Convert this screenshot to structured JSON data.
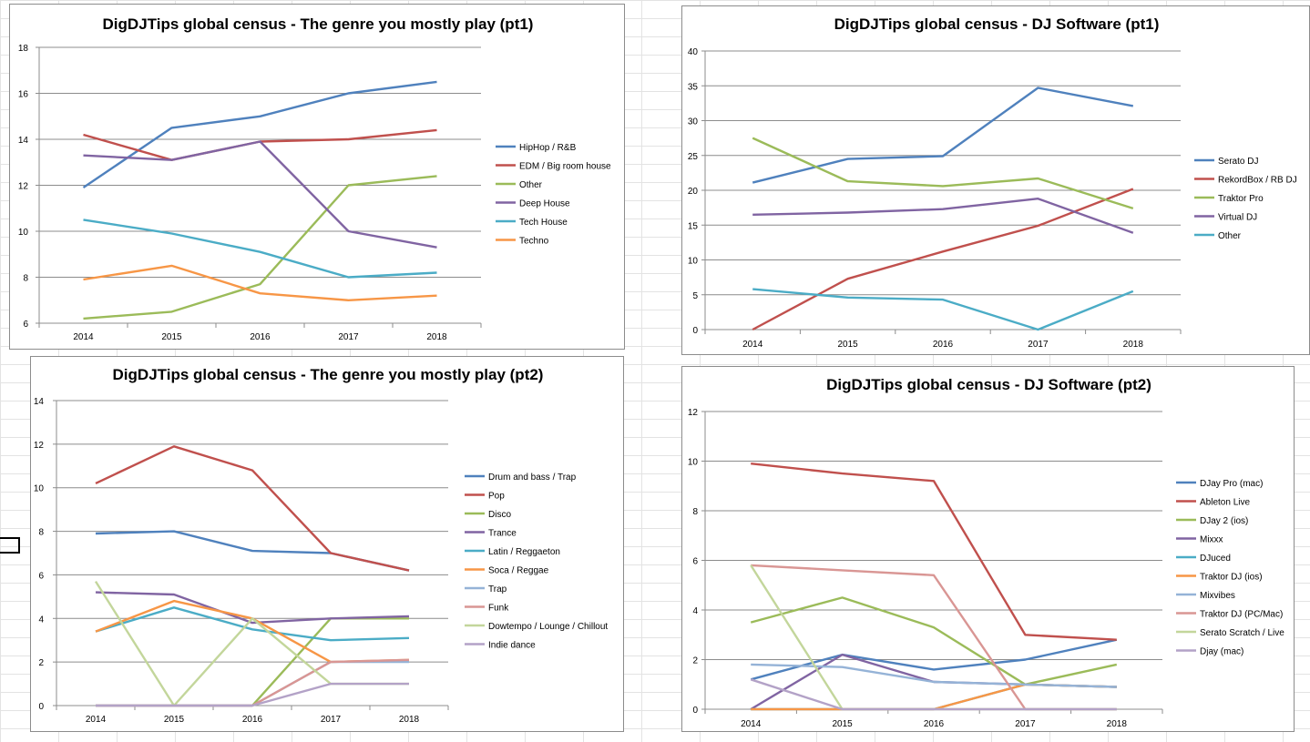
{
  "chart_data": [
    {
      "type": "line",
      "title": "DigDJTips global census - The genre you mostly play (pt1)",
      "xlabel": "",
      "ylabel": "",
      "categories": [
        "2014",
        "2015",
        "2016",
        "2017",
        "2018"
      ],
      "ylim": [
        6,
        18
      ],
      "yticks": [
        6,
        8,
        10,
        12,
        14,
        16,
        18
      ],
      "grid": true,
      "legend": "right",
      "series": [
        {
          "name": "HipHop / R&B",
          "color": "#4f81bd",
          "values": [
            11.9,
            14.5,
            15.0,
            16.0,
            16.5
          ]
        },
        {
          "name": "EDM / Big room house",
          "color": "#c0504d",
          "values": [
            14.2,
            13.1,
            13.9,
            14.0,
            14.4
          ]
        },
        {
          "name": "Other",
          "color": "#9bbb59",
          "values": [
            6.2,
            6.5,
            7.7,
            12.0,
            12.4
          ]
        },
        {
          "name": "Deep House",
          "color": "#8064a2",
          "values": [
            13.3,
            13.1,
            13.9,
            10.0,
            9.3
          ]
        },
        {
          "name": "Tech House",
          "color": "#4bacc6",
          "values": [
            10.5,
            9.9,
            9.1,
            8.0,
            8.2
          ]
        },
        {
          "name": "Techno",
          "color": "#f79646",
          "values": [
            7.9,
            8.5,
            7.3,
            7.0,
            7.2
          ]
        }
      ]
    },
    {
      "type": "line",
      "title": "DigDJTips global census - DJ Software (pt1)",
      "xlabel": "",
      "ylabel": "",
      "categories": [
        "2014",
        "2015",
        "2016",
        "2017",
        "2018"
      ],
      "ylim": [
        0,
        40
      ],
      "yticks": [
        0,
        5,
        10,
        15,
        20,
        25,
        30,
        35,
        40
      ],
      "grid": true,
      "legend": "right",
      "series": [
        {
          "name": "Serato DJ",
          "color": "#4f81bd",
          "values": [
            21.1,
            24.5,
            24.9,
            34.7,
            32.1
          ]
        },
        {
          "name": "RekordBox / RB DJ",
          "color": "#c0504d",
          "values": [
            0,
            7.3,
            11.2,
            14.9,
            20.2
          ]
        },
        {
          "name": "Traktor Pro",
          "color": "#9bbb59",
          "values": [
            27.5,
            21.3,
            20.6,
            21.7,
            17.4
          ]
        },
        {
          "name": "Virtual DJ",
          "color": "#8064a2",
          "values": [
            16.5,
            16.8,
            17.3,
            18.8,
            13.9
          ]
        },
        {
          "name": "Other",
          "color": "#4bacc6",
          "values": [
            5.8,
            4.6,
            4.3,
            0,
            5.5
          ]
        }
      ]
    },
    {
      "type": "line",
      "title": "DigDJTips global census - The genre you mostly play (pt2)",
      "xlabel": "",
      "ylabel": "",
      "categories": [
        "2014",
        "2015",
        "2016",
        "2017",
        "2018"
      ],
      "ylim": [
        0,
        14
      ],
      "yticks": [
        0,
        2,
        4,
        6,
        8,
        10,
        12,
        14
      ],
      "grid": true,
      "legend": "right",
      "series": [
        {
          "name": "Drum and bass / Trap",
          "color": "#4f81bd",
          "values": [
            7.9,
            8.0,
            7.1,
            7.0,
            6.2
          ]
        },
        {
          "name": "Pop",
          "color": "#c0504d",
          "values": [
            10.2,
            11.9,
            10.8,
            7.0,
            6.2
          ]
        },
        {
          "name": "Disco",
          "color": "#9bbb59",
          "values": [
            0,
            0,
            0,
            4.0,
            4.0
          ]
        },
        {
          "name": "Trance",
          "color": "#8064a2",
          "values": [
            5.2,
            5.1,
            3.8,
            4.0,
            4.1
          ]
        },
        {
          "name": "Latin / Reggaeton",
          "color": "#4bacc6",
          "values": [
            3.4,
            4.5,
            3.5,
            3.0,
            3.1
          ]
        },
        {
          "name": "Soca / Reggae",
          "color": "#f79646",
          "values": [
            3.4,
            4.8,
            4.0,
            2.0,
            2.1
          ]
        },
        {
          "name": "Trap",
          "color": "#95b3d7",
          "values": [
            0,
            0,
            0,
            2.0,
            2.0
          ]
        },
        {
          "name": "Funk",
          "color": "#d99694",
          "values": [
            0,
            0,
            0,
            2.0,
            2.1
          ]
        },
        {
          "name": "Dowtempo / Lounge / Chillout",
          "color": "#c3d69b",
          "values": [
            5.7,
            0,
            4.0,
            1.0,
            1.0
          ]
        },
        {
          "name": "Indie dance",
          "color": "#b3a2c7",
          "values": [
            0,
            0,
            0,
            1.0,
            1.0
          ]
        }
      ]
    },
    {
      "type": "line",
      "title": "DigDJTips global census - DJ Software (pt2)",
      "xlabel": "",
      "ylabel": "",
      "categories": [
        "2014",
        "2015",
        "2016",
        "2017",
        "2018"
      ],
      "ylim": [
        0,
        12
      ],
      "yticks": [
        0,
        2,
        4,
        6,
        8,
        10,
        12
      ],
      "grid": true,
      "legend": "right",
      "series": [
        {
          "name": "DJay Pro (mac)",
          "color": "#4f81bd",
          "values": [
            1.2,
            2.2,
            1.6,
            2.0,
            2.8
          ]
        },
        {
          "name": "Ableton Live",
          "color": "#c0504d",
          "values": [
            9.9,
            9.5,
            9.2,
            3.0,
            2.8
          ]
        },
        {
          "name": "DJay 2 (ios)",
          "color": "#9bbb59",
          "values": [
            3.5,
            4.5,
            3.3,
            1.0,
            1.8
          ]
        },
        {
          "name": "Mixxx",
          "color": "#8064a2",
          "values": [
            0,
            2.2,
            1.1,
            1.0,
            0.9
          ]
        },
        {
          "name": "DJuced",
          "color": "#4bacc6",
          "values": [
            0,
            0,
            0,
            1.0,
            0.9
          ]
        },
        {
          "name": "Traktor DJ (ios)",
          "color": "#f79646",
          "values": [
            0,
            0,
            0,
            1.0,
            0.9
          ]
        },
        {
          "name": "Mixvibes",
          "color": "#95b3d7",
          "values": [
            1.8,
            1.7,
            1.1,
            1.0,
            0.9
          ]
        },
        {
          "name": "Traktor DJ (PC/Mac)",
          "color": "#d99694",
          "values": [
            5.8,
            5.6,
            5.4,
            0,
            0
          ]
        },
        {
          "name": "Serato Scratch / Live",
          "color": "#c3d69b",
          "values": [
            5.8,
            0,
            0,
            0,
            0
          ]
        },
        {
          "name": "Djay (mac)",
          "color": "#b3a2c7",
          "values": [
            1.2,
            0,
            0,
            0,
            0
          ]
        }
      ]
    }
  ]
}
